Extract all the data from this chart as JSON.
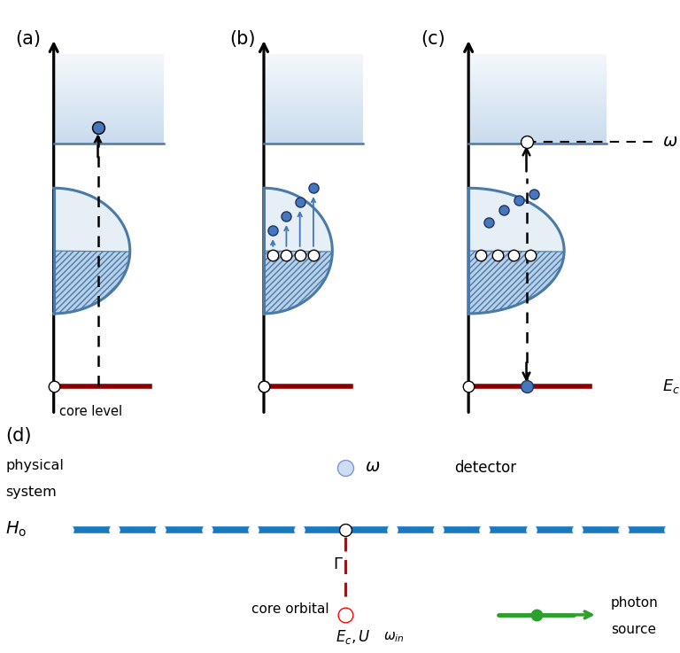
{
  "bg_color": "#ffffff",
  "blue_band_light": "#b8d0e8",
  "blue_band_very_light": "#ddeeff",
  "blue_band_dark": "#4a7aaa",
  "hatch_color": "#4a7aaa",
  "core_line_color": "#8b0000",
  "chain_color": "#1a7abf",
  "red_dashed_color": "#cc0000",
  "green_color": "#2ca02c",
  "electron_fill": "#4477bb",
  "electron_edge": "#223366",
  "panel_labels": [
    "(a)",
    "(b)",
    "(c)",
    "(d)"
  ]
}
